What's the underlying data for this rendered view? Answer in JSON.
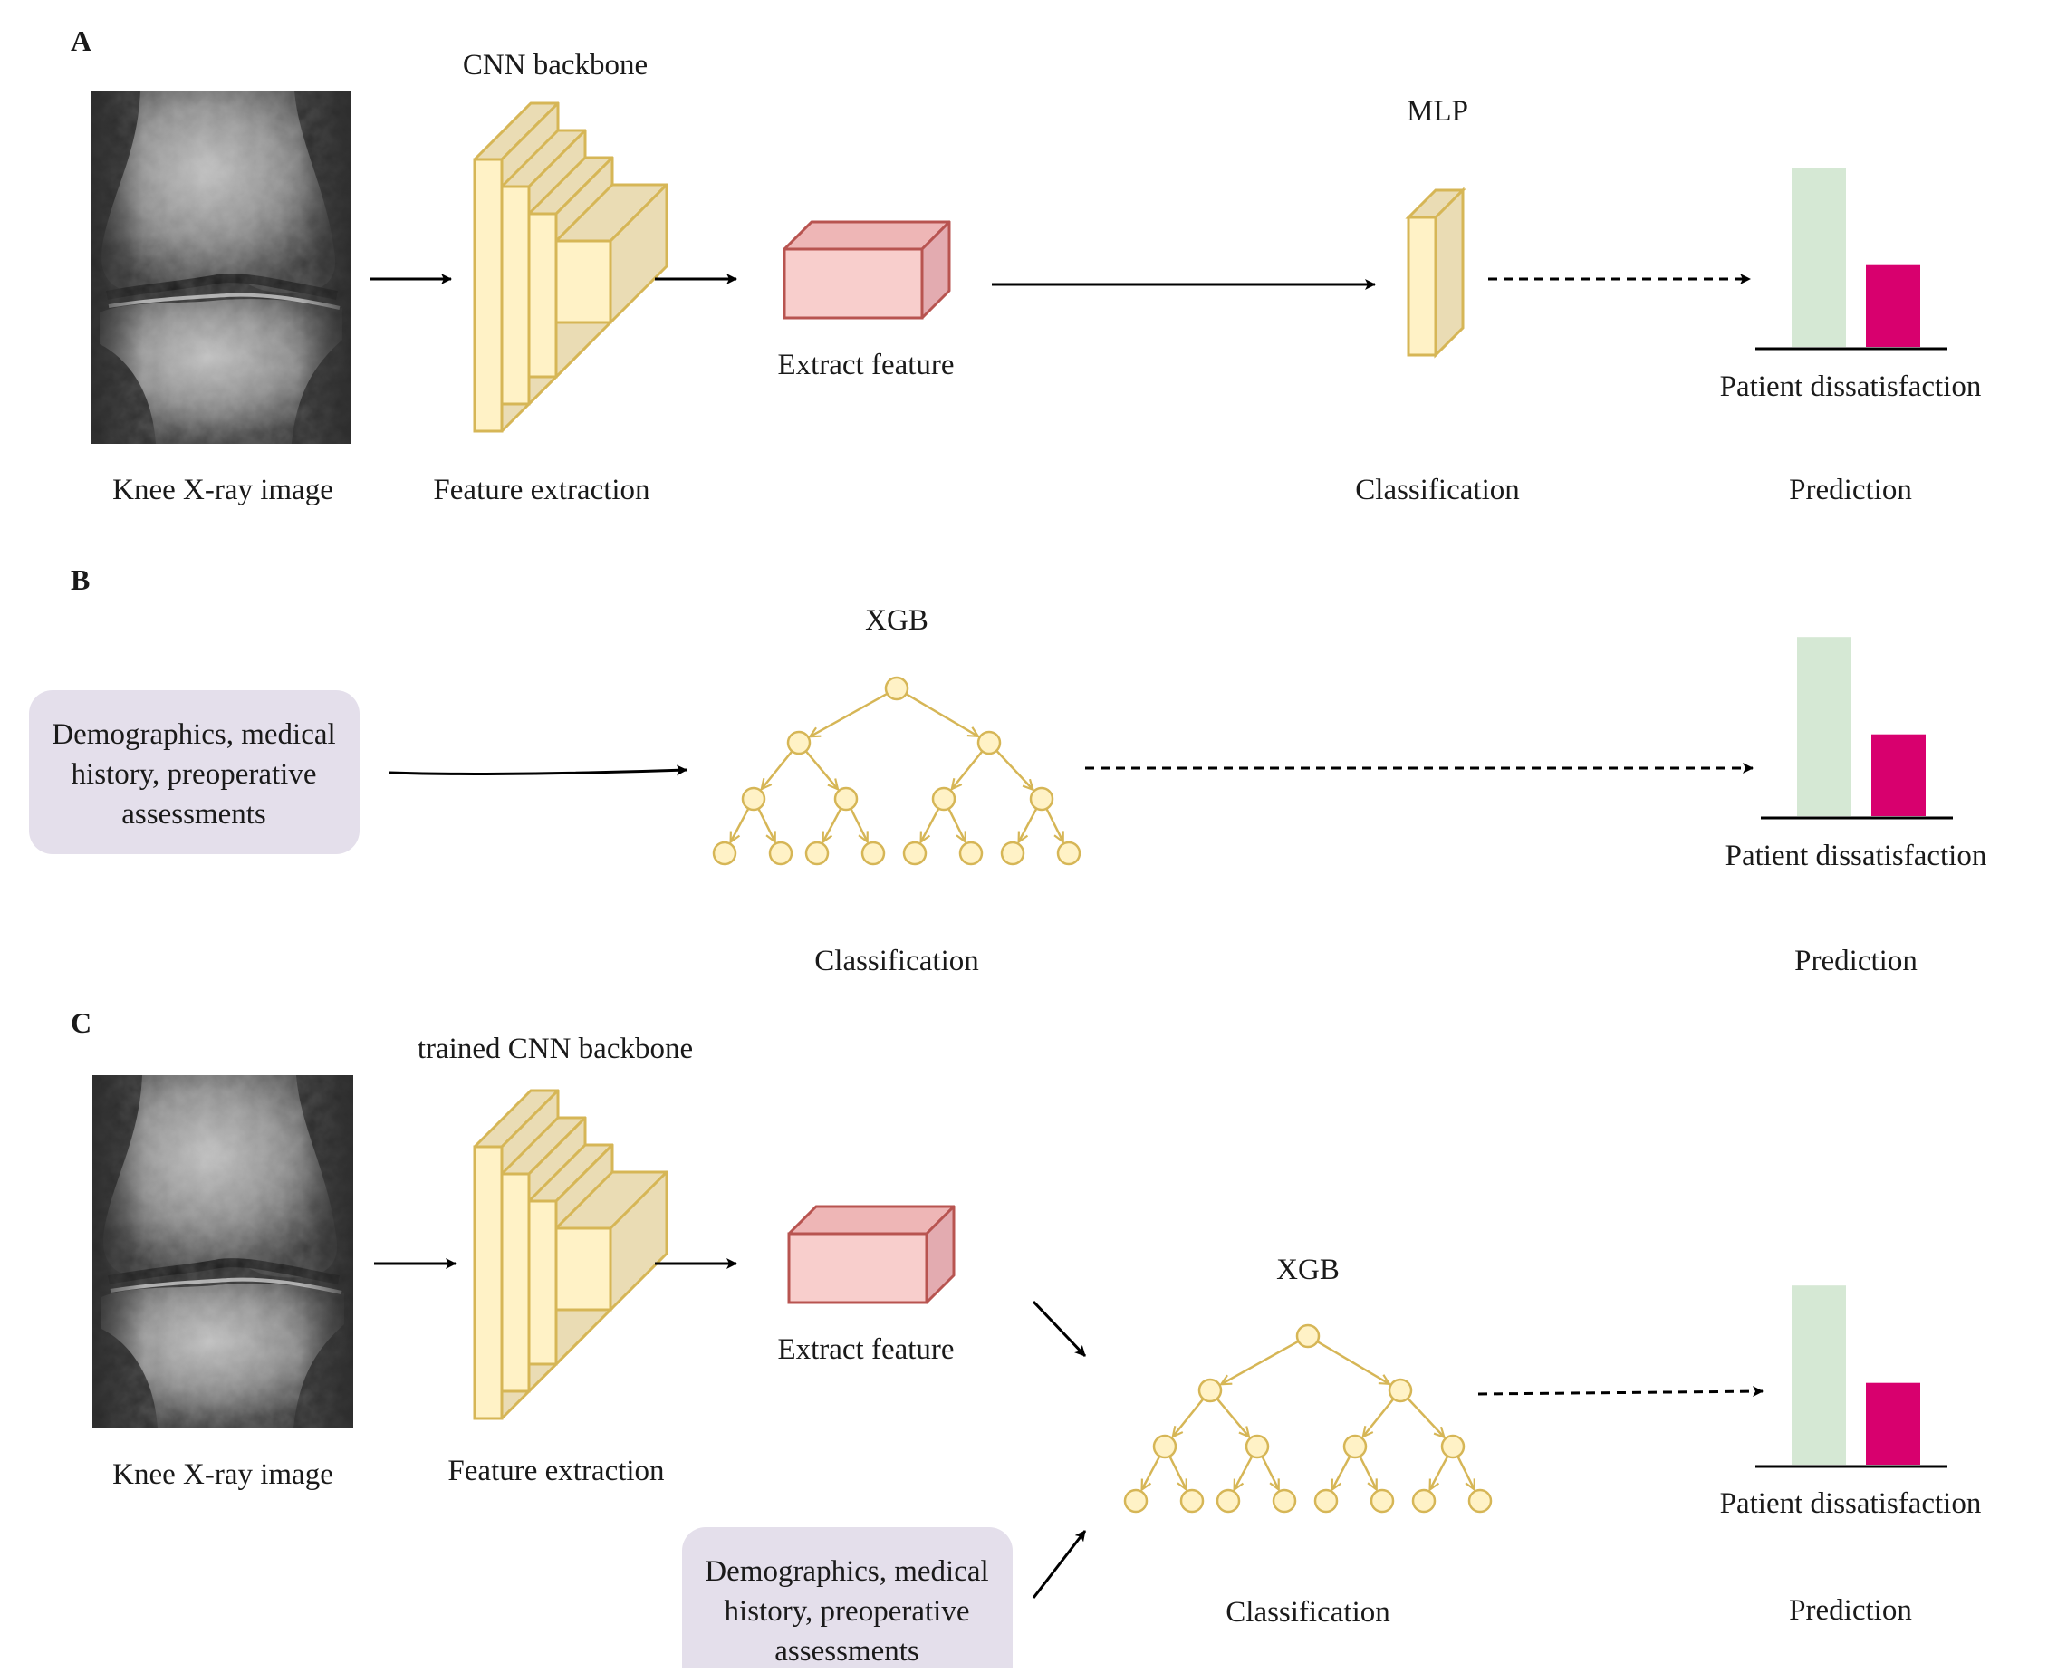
{
  "colors": {
    "cnn_face": "#fff2c6",
    "cnn_side": "#eadcb4",
    "cnn_stroke": "#d6b656",
    "feature_front": "#f8cecc",
    "feature_top": "#eeb6b6",
    "feature_side": "#e3abb0",
    "feature_stroke": "#b85450",
    "tree_node": "#fff2c6",
    "tree_stroke": "#d6b656",
    "bar_satisfied": "#d5e8d4",
    "bar_dissatisfied": "#d8006e",
    "input_box": "#e4dfeb",
    "arrow": "#000000"
  },
  "panels": {
    "A": {
      "letter": "A",
      "xray_label": "Knee X-ray image",
      "cnn_title": "CNN backbone",
      "feature_extraction_label": "Feature extraction",
      "extract_feature_label": "Extract feature",
      "mlp_title": "MLP",
      "classification_label": "Classification",
      "chart_label": "Patient dissatisfaction",
      "prediction_label": "Prediction",
      "bars": [
        0.92,
        0.42
      ]
    },
    "B": {
      "letter": "B",
      "input_lines": [
        "Demographics, medical",
        "history, preoperative",
        "assessments"
      ],
      "xgb_title": "XGB",
      "classification_label": "Classification",
      "chart_label": "Patient dissatisfaction",
      "prediction_label": "Prediction",
      "bars": [
        0.92,
        0.42
      ]
    },
    "C": {
      "letter": "C",
      "xray_label": "Knee X-ray image",
      "cnn_title": "trained CNN backbone",
      "feature_extraction_label": "Feature extraction",
      "extract_feature_label": "Extract feature",
      "input_lines": [
        "Demographics, medical",
        "history, preoperative",
        "assessments"
      ],
      "xgb_title": "XGB",
      "classification_label": "Classification",
      "chart_label": "Patient dissatisfaction",
      "prediction_label": "Prediction",
      "bars": [
        0.92,
        0.42
      ]
    }
  }
}
